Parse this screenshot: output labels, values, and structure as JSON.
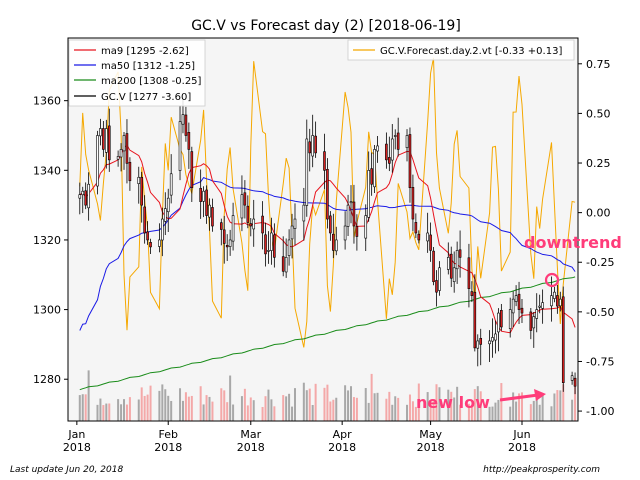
{
  "chart_data": {
    "type": "candlestick",
    "title": "GC.V vs Forecast day (2)  [2018-06-19]",
    "footer_left": "Last update Jun 20, 2018",
    "footer_right": "http://peakprosperity.com",
    "x_ticks": [
      {
        "label": "Jan",
        "year": "2018",
        "date": "2018-01-01"
      },
      {
        "label": "Feb",
        "year": "2018",
        "date": "2018-02-01"
      },
      {
        "label": "Mar",
        "year": "2018",
        "date": "2018-03-01"
      },
      {
        "label": "Apr",
        "year": "2018",
        "date": "2018-04-01"
      },
      {
        "label": "May",
        "year": "2018",
        "date": "2018-05-01"
      },
      {
        "label": "Jun",
        "year": "2018",
        "date": "2018-06-01"
      }
    ],
    "x_range": [
      "2017-12-29",
      "2018-06-20"
    ],
    "y_left": {
      "ticks": [
        1280,
        1300,
        1320,
        1340,
        1360
      ],
      "range": [
        1268,
        1378
      ]
    },
    "y_right": {
      "ticks": [
        "0.75",
        "0.50",
        "0.25",
        "0.00",
        "-0.25",
        "-0.50",
        "-0.75",
        "-1.00"
      ],
      "values": [
        0.75,
        0.5,
        0.25,
        0.0,
        -0.25,
        -0.5,
        -0.75,
        -1.0
      ],
      "range": [
        -1.05,
        0.88
      ]
    },
    "legend_left": [
      {
        "name": "ma9 [1295 -2.62]",
        "color": "#e8141e"
      },
      {
        "name": "ma50 [1312 -1.25]",
        "color": "#1a1ae6"
      },
      {
        "name": "ma200 [1308 -0.25]",
        "color": "#1a8c1a"
      },
      {
        "name": "GC.V [1277 -3.60]",
        "color": "#000000"
      }
    ],
    "legend_right": [
      {
        "name": "GC.V.Forecast.day.2.vt [-0.33 +0.13]",
        "color": "#f5a800"
      }
    ],
    "annotations": [
      {
        "text": "downtrend",
        "color": "#ff3c7a"
      },
      {
        "text": "new low",
        "color": "#ff3c7a"
      }
    ],
    "colors": {
      "up_candle": "#ffffff",
      "down_candle": "#d42020",
      "volume_up": "#a8a8a8",
      "volume_down": "#f4a8a8",
      "plot_bg": "#f5f5f5"
    },
    "closes": [
      1333,
      1334,
      1330,
      1336,
      1350,
      1352,
      1346,
      1352,
      1343,
      1344,
      1346,
      1350,
      1342,
      1337,
      1338,
      1330,
      1322,
      1320,
      1318,
      1320,
      1326,
      1329,
      1332,
      1339,
      1354,
      1356,
      1350,
      1346,
      1335,
      1331,
      1334,
      1327,
      1330,
      1324,
      1323,
      1319,
      1318,
      1320,
      1327,
      1333,
      1330,
      1325,
      1324,
      1326,
      1322,
      1316,
      1317,
      1322,
      1315,
      1311,
      1315,
      1320,
      1324,
      1326,
      1330,
      1349,
      1345,
      1350,
      1345,
      1340,
      1326,
      1322,
      1317,
      1320,
      1324,
      1330,
      1331,
      1324,
      1321,
      1327,
      1340,
      1336,
      1346,
      1347,
      1343,
      1342,
      1349,
      1350,
      1346,
      1350,
      1335,
      1326,
      1322,
      1320,
      1322,
      1317,
      1308,
      1305,
      1312,
      1315,
      1309,
      1312,
      1317,
      1315,
      1306,
      1304,
      1289,
      1291,
      1290,
      1291,
      1292,
      1293,
      1299,
      1295,
      1300,
      1303,
      1304,
      1300,
      1299,
      1294,
      1298,
      1300,
      1301,
      1302,
      1304,
      1305,
      1301,
      1303,
      1279,
      1281,
      1278
    ]
  }
}
